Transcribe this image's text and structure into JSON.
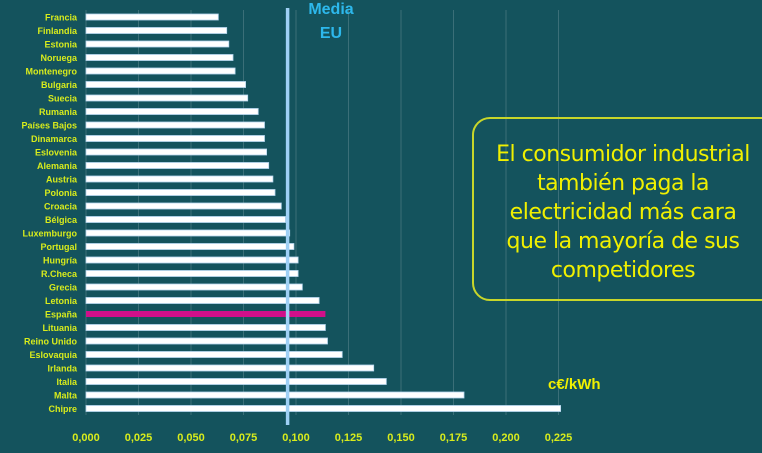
{
  "chart_data": {
    "type": "bar",
    "orientation": "horizontal",
    "categories": [
      "Francia",
      "Finlandia",
      "Estonia",
      "Noruega",
      "Montenegro",
      "Bulgaria",
      "Suecia",
      "Rumania",
      "Países Bajos",
      "Dinamarca",
      "Eslovenia",
      "Alemania",
      "Austria",
      "Polonia",
      "Croacia",
      "Bélgica",
      "Luxemburgo",
      "Portugal",
      "Hungría",
      "R.Checa",
      "Grecia",
      "Letonia",
      "España",
      "Lituania",
      "Reino Unido",
      "Eslovaquia",
      "Irlanda",
      "Italia",
      "Malta",
      "Chipre"
    ],
    "values": [
      0.063,
      0.067,
      0.068,
      0.07,
      0.071,
      0.076,
      0.077,
      0.082,
      0.085,
      0.085,
      0.086,
      0.087,
      0.089,
      0.09,
      0.093,
      0.095,
      0.097,
      0.099,
      0.101,
      0.101,
      0.103,
      0.111,
      0.114,
      0.114,
      0.115,
      0.122,
      0.137,
      0.143,
      0.18,
      0.226
    ],
    "highlight": "España",
    "xlim": [
      0,
      0.225
    ],
    "xticks": [
      "0,000",
      "0,025",
      "0,050",
      "0,075",
      "0,100",
      "0,125",
      "0,150",
      "0,175",
      "0,200",
      "0,225"
    ],
    "grid": true,
    "xlabel": "c€/kWh",
    "reference_line": {
      "label_line1": "Media",
      "label_line2": "EU",
      "value": 0.096
    },
    "colors": {
      "bar": "#ffffff",
      "highlight": "#d0108a",
      "reference": "#9fd0f5",
      "label": "#d8ec1c",
      "background": "#14535d"
    }
  },
  "annotation": {
    "line1": "El consumidor industrial",
    "line2": "también paga la",
    "line3": "electricidad más cara",
    "line4": "que la mayoría de sus",
    "line5": "competidores"
  }
}
